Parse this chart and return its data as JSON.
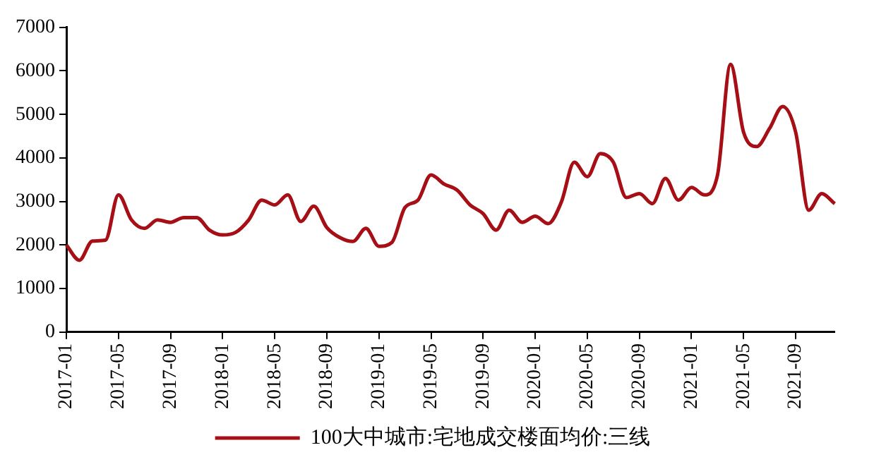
{
  "chart_data": {
    "type": "line",
    "categories": [
      "2017-01",
      null,
      null,
      null,
      "2017-05",
      null,
      null,
      null,
      "2017-09",
      null,
      null,
      null,
      "2018-01",
      null,
      null,
      null,
      "2018-05",
      null,
      null,
      null,
      "2018-09",
      null,
      null,
      null,
      "2019-01",
      null,
      null,
      null,
      "2019-05",
      null,
      null,
      null,
      "2019-09",
      null,
      null,
      null,
      "2020-01",
      null,
      null,
      null,
      "2020-05",
      null,
      null,
      null,
      "2020-09",
      null,
      null,
      null,
      "2021-01",
      null,
      null,
      null,
      "2021-05",
      null,
      null,
      null,
      "2021-09",
      null,
      null,
      null
    ],
    "series": [
      {
        "name": "100大中城市:宅地成交楼面均价:三线",
        "color": "#a50f15",
        "values": [
          2000,
          1650,
          2090,
          2110,
          3150,
          2575,
          2380,
          2575,
          2520,
          2630,
          2630,
          2340,
          2230,
          2290,
          2575,
          3030,
          2920,
          3150,
          2540,
          2890,
          2400,
          2170,
          2080,
          2380,
          1970,
          2060,
          2860,
          3030,
          3610,
          3400,
          3260,
          2920,
          2720,
          2340,
          2800,
          2520,
          2660,
          2490,
          2980,
          3900,
          3570,
          4100,
          3900,
          3090,
          3180,
          2950,
          3530,
          3030,
          3320,
          3150,
          3610,
          6150,
          4590,
          4260,
          4680,
          5180,
          4590,
          2800,
          3180,
          2950
        ]
      }
    ],
    "ylim": [
      0,
      7000
    ],
    "yticks": [
      0,
      1000,
      2000,
      3000,
      4000,
      5000,
      6000,
      7000
    ],
    "grid": false,
    "legend": "bottom",
    "marker": "none",
    "line_style": "solid"
  }
}
